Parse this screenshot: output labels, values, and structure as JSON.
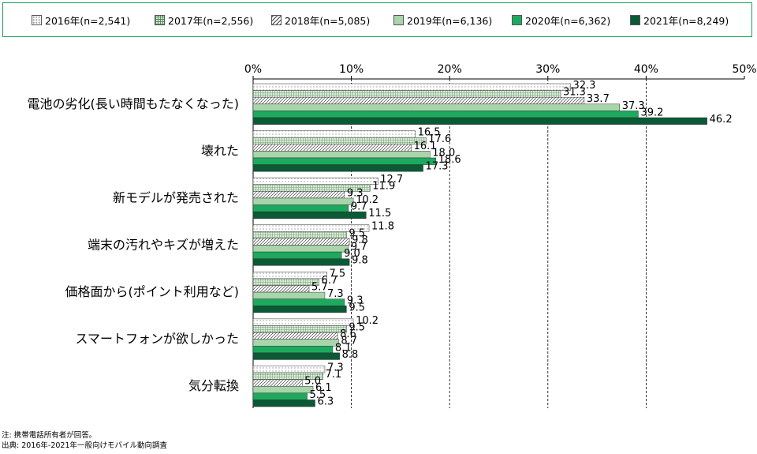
{
  "chart_data": {
    "type": "bar",
    "orientation": "horizontal",
    "categories": [
      "電池の劣化(長い時間もたなくなった)",
      "壊れた",
      "新モデルが発売された",
      "端末の汚れやキズが増えた",
      "価格面から(ポイント利用など)",
      "スマートフォンが欲しかった",
      "気分転換"
    ],
    "series": [
      {
        "name": "2016年(n=2,541)",
        "values": [
          32.3,
          16.5,
          12.7,
          11.8,
          7.5,
          10.2,
          7.3
        ],
        "color": "#ffffff",
        "pattern": "dots"
      },
      {
        "name": "2017年(n=2,556)",
        "values": [
          31.3,
          17.6,
          11.9,
          9.5,
          6.7,
          9.5,
          7.1
        ],
        "color": "#d8ecd8",
        "pattern": "grid"
      },
      {
        "name": "2018年(n=5,085)",
        "values": [
          33.7,
          16.1,
          9.3,
          9.8,
          5.7,
          8.6,
          5.0
        ],
        "color": "#ffffff",
        "pattern": "diagonal"
      },
      {
        "name": "2019年(n=6,136)",
        "values": [
          37.3,
          18.0,
          10.2,
          9.7,
          7.3,
          8.7,
          6.1
        ],
        "color": "#a8d5aa",
        "pattern": "solid"
      },
      {
        "name": "2020年(n=6,362)",
        "values": [
          39.2,
          18.6,
          9.7,
          9.0,
          9.3,
          8.1,
          5.5
        ],
        "color": "#1eaa5e",
        "pattern": "solid"
      },
      {
        "name": "2021年(n=8,249)",
        "values": [
          46.2,
          17.3,
          11.5,
          9.8,
          9.5,
          8.8,
          6.3
        ],
        "color": "#0a5a35",
        "pattern": "solid"
      }
    ],
    "xlim": [
      0,
      50
    ],
    "xticks": [
      "0%",
      "10%",
      "20%",
      "30%",
      "40%",
      "50%"
    ],
    "grid": "dashed vertical",
    "legend_position": "top"
  },
  "notes": [
    "注: 携帯電話所有者が回答。",
    "出典: 2016年-2021年一般向けモバイル動向調査"
  ]
}
